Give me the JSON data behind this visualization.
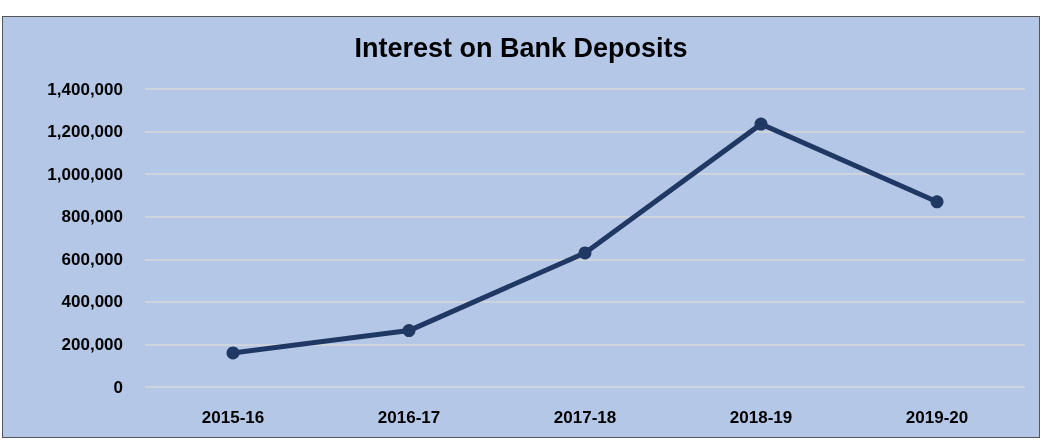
{
  "chart_data": {
    "type": "line",
    "title": "Interest on Bank Deposits",
    "categories": [
      "2015-16",
      "2016-17",
      "2017-18",
      "2018-19",
      "2019-20"
    ],
    "series": [
      {
        "color": "#203864",
        "values": [
          160000,
          265000,
          630000,
          1235000,
          870000
        ]
      }
    ],
    "ylim": [
      0,
      1400000
    ],
    "yticks": [
      {
        "value": 0,
        "label": "0"
      },
      {
        "value": 200000,
        "label": "200,000"
      },
      {
        "value": 400000,
        "label": "400,000"
      },
      {
        "value": 600000,
        "label": "600,000"
      },
      {
        "value": 800000,
        "label": "800,000"
      },
      {
        "value": 1000000,
        "label": "1,000,000"
      },
      {
        "value": 1200000,
        "label": "1,200,000"
      },
      {
        "value": 1400000,
        "label": "1,400,000"
      }
    ],
    "grid": "y",
    "marker": "circle",
    "line_style": "solid"
  }
}
